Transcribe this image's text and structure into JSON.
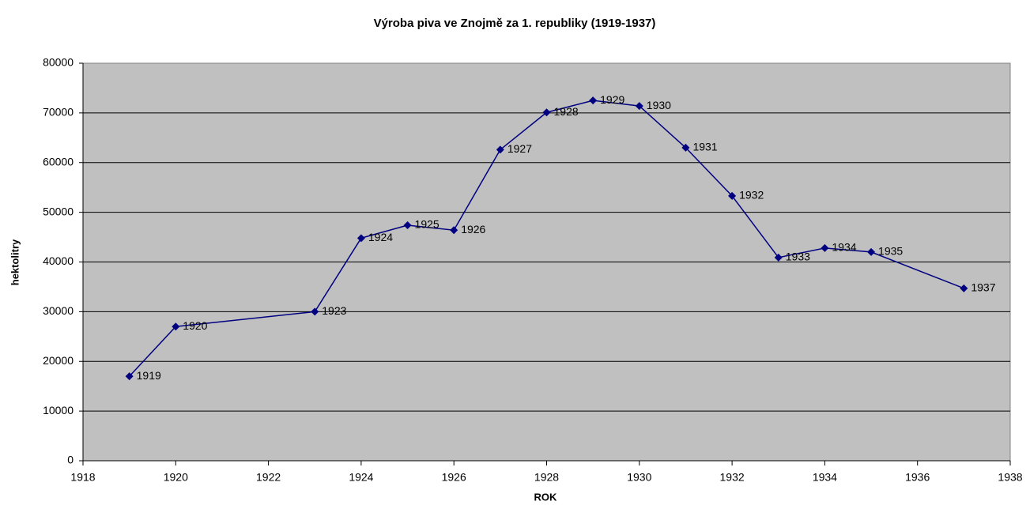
{
  "chart_data": {
    "type": "line",
    "title": "Výroba piva ve Znojmě za 1. republiky (1919-1937)",
    "x_label": "ROK",
    "y_label": "hektolitry",
    "x": [
      1919,
      1920,
      1923,
      1924,
      1925,
      1926,
      1927,
      1928,
      1929,
      1930,
      1931,
      1932,
      1933,
      1934,
      1935,
      1937
    ],
    "series": [
      {
        "name": "hektolitry",
        "color": "#000080",
        "values": [
          17000,
          27000,
          30000,
          44800,
          47400,
          46400,
          62600,
          70100,
          72500,
          71400,
          63000,
          53300,
          40900,
          42800,
          42000,
          34700
        ]
      }
    ],
    "xlim": [
      1918,
      1938
    ],
    "xticks": [
      1918,
      1920,
      1922,
      1924,
      1926,
      1928,
      1930,
      1932,
      1934,
      1936,
      1938
    ],
    "ylim": [
      0,
      80000
    ],
    "yticks": [
      0,
      10000,
      20000,
      30000,
      40000,
      50000,
      60000,
      70000,
      80000
    ],
    "grid": true,
    "plot_background": "#c0c0c0"
  }
}
